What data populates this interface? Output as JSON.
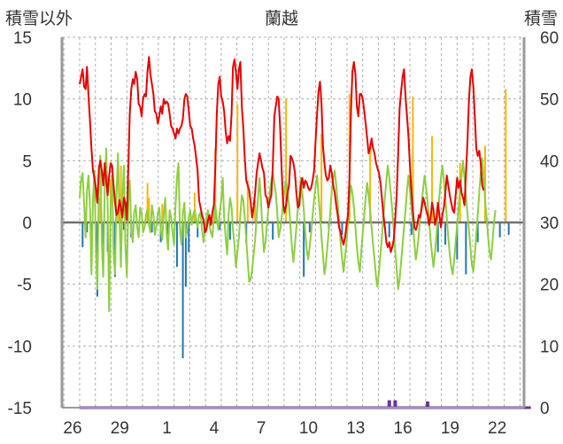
{
  "chart_data": {
    "type": "line",
    "title": "蘭越",
    "left_axis_label": "積雪以外",
    "right_axis_label": "積雪",
    "left_ylim": [
      -15,
      15
    ],
    "left_ticks": [
      15,
      10,
      5,
      0,
      -5,
      -10,
      -15
    ],
    "right_ylim": [
      0,
      60
    ],
    "right_ticks": [
      60,
      50,
      40,
      30,
      20,
      10,
      0
    ],
    "x_tick_labels": [
      "26",
      "29",
      "1",
      "4",
      "7",
      "10",
      "13",
      "16",
      "19",
      "22"
    ],
    "grid": true,
    "colors": {
      "temperature": "#e60000",
      "sunshine": "#f5b800",
      "precipitation": "#1f77b4",
      "wind": "#8ccf3f",
      "snow_depth": "#7030a0",
      "zero_line": "#707070",
      "grid": "#b0b0b0",
      "axis": "#9a9a9a"
    },
    "series": [
      {
        "key": "temperature",
        "y": [
          11.2,
          11.8,
          12.4,
          11.0,
          10.8,
          12.6,
          10.2,
          8.2,
          6.0,
          4.2,
          3.6,
          2.8,
          1.6,
          4.4,
          5.0,
          4.2,
          3.0,
          4.8,
          3.4,
          2.2,
          3.8,
          4.8,
          4.6,
          3.0,
          1.6,
          0.6,
          0.8,
          1.8,
          1.2,
          0.4,
          2.0,
          1.6,
          0.2,
          4.6,
          8.8,
          10.8,
          11.6,
          11.2,
          12.2,
          11.6,
          9.6,
          9.4,
          8.6,
          10.0,
          10.4,
          10.2,
          12.2,
          13.4,
          12.0,
          11.2,
          10.4,
          9.0,
          8.8,
          8.0,
          8.6,
          9.4,
          8.8,
          10.0,
          9.6,
          9.8,
          9.6,
          8.8,
          7.8,
          7.6,
          7.2,
          6.8,
          7.6,
          7.2,
          7.6,
          7.8,
          8.4,
          10.0,
          10.4,
          10.2,
          9.0,
          7.8,
          7.6,
          6.8,
          6.2,
          5.2,
          4.2,
          1.8,
          1.2,
          0.6,
          0.2,
          -0.8,
          -0.6,
          0.2,
          0.6,
          -0.2,
          0.8,
          1.4,
          4.4,
          8.8,
          11.2,
          11.8,
          10.2,
          9.8,
          9.0,
          7.4,
          6.4,
          7.0,
          6.6,
          8.8,
          12.6,
          13.2,
          12.2,
          10.8,
          12.4,
          13.0,
          9.4,
          7.6,
          5.2,
          3.4,
          3.0,
          2.6,
          1.6,
          0.4,
          1.2,
          2.4,
          4.0,
          4.8,
          5.6,
          5.0,
          4.4,
          4.0,
          2.2,
          2.0,
          1.2,
          1.8,
          2.2,
          4.6,
          8.6,
          9.4,
          10.2,
          10.0,
          7.6,
          4.2,
          1.6,
          0.8,
          1.4,
          2.4,
          3.0,
          5.4,
          5.2,
          4.8,
          4.0,
          2.4,
          1.2,
          1.4,
          3.0,
          3.6,
          2.8,
          3.4,
          3.2,
          2.8,
          2.6,
          2.8,
          3.4,
          4.2,
          6.6,
          8.8,
          10.6,
          11.4,
          9.6,
          6.2,
          4.8,
          3.8,
          3.4,
          3.6,
          4.6,
          4.0,
          3.0,
          2.4,
          1.4,
          0.6,
          -0.4,
          -0.8,
          -1.4,
          -1.8,
          -1.2,
          -0.2,
          0.6,
          3.6,
          9.0,
          12.2,
          13.0,
          12.0,
          9.4,
          8.6,
          10.4,
          10.4,
          10.0,
          9.0,
          8.0,
          6.8,
          5.6,
          6.0,
          6.8,
          6.0,
          5.6,
          4.8,
          4.4,
          4.0,
          3.2,
          2.0,
          0.6,
          -0.4,
          -1.6,
          -2.0,
          -1.6,
          -2.4,
          -2.0,
          -1.4,
          0.2,
          2.2,
          5.6,
          9.2,
          10.6,
          11.8,
          12.4,
          10.2,
          8.6,
          7.0,
          4.6,
          2.6,
          1.0,
          -0.4,
          -0.6,
          -0.2,
          0.6,
          0.4,
          1.2,
          2.0,
          1.6,
          1.0,
          0.6,
          -0.2,
          0.4,
          1.6,
          1.0,
          -0.2,
          0.4,
          1.6,
          0.6,
          -0.4,
          0.6,
          1.2,
          2.4,
          3.8,
          3.0,
          2.2,
          1.6,
          1.0,
          0.8,
          2.2,
          3.6,
          2.8,
          3.4,
          2.4,
          2.0,
          1.4,
          4.0,
          6.4,
          9.8,
          11.8,
          12.4,
          11.0,
          8.6,
          6.0,
          5.4,
          5.8,
          4.8,
          3.0,
          2.6
        ]
      },
      {
        "key": "wind",
        "y": [
          2,
          3.5,
          4,
          1.5,
          -1.2,
          2.6,
          3.8,
          1.2,
          -4.2,
          1.8,
          4.2,
          -2.2,
          -5.4,
          3.2,
          5.4,
          -1.6,
          -4.4,
          2.8,
          6.0,
          1.4,
          -7.2,
          1.2,
          3.8,
          -2.6,
          -4.2,
          2.2,
          5.6,
          0.4,
          -3.6,
          2.0,
          4.6,
          -1.8,
          -4.4,
          1.6,
          3.4,
          -0.6,
          -1.6,
          0.8,
          1.4,
          -0.4,
          -1.2,
          1.2,
          0.8,
          -0.8,
          -0.4,
          0.6,
          1.0,
          -0.2,
          -0.8,
          1.4,
          0.6,
          -1.0,
          -0.4,
          0.8,
          1.2,
          -0.6,
          -1.4,
          0.6,
          2.0,
          -1.0,
          -2.2,
          1.0,
          0.4,
          -0.8,
          -1.8,
          1.4,
          3.6,
          4.8,
          -0.6,
          -1.8,
          0.8,
          1.6,
          -1.2,
          -0.6,
          0.4,
          1.0,
          -0.2,
          0.6,
          1.0,
          0.2,
          -0.4,
          0.6,
          0.8,
          -0.6,
          -1.6,
          -0.4,
          0.4,
          1.0,
          -0.2,
          -0.8,
          -1.2,
          0.4,
          1.4,
          0.2,
          -0.6,
          0.8,
          1.8,
          3.6,
          0.4,
          -1.2,
          -2.6,
          0.6,
          2.0,
          1.2,
          -0.6,
          -1.8,
          -3.6,
          -2.4,
          -1.2,
          0.6,
          2.2,
          1.8,
          0.4,
          -1.4,
          -3.2,
          -4.8,
          -4.6,
          -3.8,
          -2.6,
          -1.4,
          0.4,
          2.0,
          3.6,
          1.6,
          -0.6,
          -2.4,
          -1.6,
          -0.2,
          1.2,
          2.6,
          3.4,
          4.0,
          3.2,
          2.4,
          0.8,
          -1.2,
          -0.6,
          0.4,
          1.6,
          2.8,
          3.4,
          2.6,
          1.4,
          -0.4,
          -2.0,
          -3.2,
          -1.8,
          -0.4,
          1.2,
          2.2,
          3.6,
          2.4,
          1.0,
          -0.8,
          -2.2,
          -3.0,
          -2.0,
          -0.8,
          0.6,
          1.8,
          3.0,
          3.8,
          2.2,
          0.6,
          -1.2,
          -2.6,
          -4.2,
          -3.4,
          -2.0,
          -0.6,
          0.8,
          2.6,
          3.6,
          4.2,
          3.0,
          1.6,
          0.0,
          -1.6,
          -3.0,
          -4.0,
          -2.8,
          -1.6,
          0.0,
          1.6,
          3.0,
          2.4,
          1.2,
          -0.4,
          -2.0,
          -3.2,
          -4.0,
          -2.4,
          -0.8,
          0.6,
          2.0,
          3.2,
          2.2,
          1.0,
          -0.4,
          -1.8,
          -3.0,
          -4.4,
          -5.2,
          -4.0,
          -2.6,
          -1.2,
          0.4,
          2.0,
          3.4,
          4.6,
          3.6,
          2.4,
          1.0,
          -0.6,
          -2.2,
          -3.8,
          -5.4,
          -4.6,
          -3.2,
          -1.8,
          -0.4,
          1.0,
          2.6,
          3.8,
          2.6,
          1.2,
          -0.2,
          -1.6,
          -3.0,
          -2.2,
          -1.0,
          0.4,
          1.6,
          2.8,
          3.8,
          2.8,
          1.6,
          0.2,
          -1.4,
          -2.6,
          -3.6,
          -2.4,
          -1.0,
          0.6,
          2.2,
          3.6,
          4.6,
          3.4,
          2.0,
          0.4,
          -1.2,
          -2.6,
          -3.6,
          -4.2,
          -3.0,
          -1.6,
          -0.2,
          1.2,
          2.6,
          3.8,
          5.0,
          3.6,
          2.2,
          0.8,
          -0.6,
          -2.0,
          -3.4,
          -4.0,
          -2.6,
          -1.0,
          0.6,
          2.4,
          4.0,
          5.2,
          3.6,
          1.8,
          0.4,
          -1.2,
          -2.4,
          -3.0,
          -1.6,
          0.0,
          1.0
        ]
      },
      {
        "key": "snow_depth",
        "y": [
          0,
          0,
          0,
          0,
          0,
          0,
          0,
          0,
          0,
          0,
          0,
          0,
          0,
          0,
          0,
          0,
          0,
          0,
          0,
          0,
          0,
          0,
          0,
          0,
          0,
          0,
          0,
          0,
          0,
          0,
          0,
          0,
          0,
          0,
          0,
          0,
          0,
          0,
          0,
          0,
          0,
          0,
          0,
          0,
          0,
          0,
          0,
          0,
          0,
          0,
          0,
          0,
          0,
          0,
          0,
          0,
          0,
          0,
          0,
          0,
          0,
          0,
          0,
          0,
          0,
          0,
          0,
          0,
          0,
          0,
          0,
          0,
          0,
          0,
          0,
          0,
          0,
          0,
          0,
          0,
          0,
          0,
          0,
          0,
          0,
          0,
          0,
          0,
          0,
          0,
          0,
          0,
          0,
          0,
          0,
          0,
          0,
          0,
          0,
          0,
          0,
          0,
          0,
          0,
          0,
          0,
          0,
          0,
          0,
          0,
          0,
          0,
          0,
          0,
          0,
          0,
          0,
          0,
          0,
          0,
          0,
          0,
          0,
          0,
          0,
          0,
          0,
          0,
          0,
          0,
          0,
          0,
          0,
          0,
          0,
          0,
          0,
          0,
          0,
          0,
          0,
          0,
          0,
          0,
          0,
          0,
          0,
          0,
          0,
          0,
          0,
          0,
          0,
          0,
          0,
          0,
          0,
          0,
          0,
          0,
          0,
          0,
          0,
          0,
          0,
          0,
          0,
          0,
          0,
          0,
          0,
          0,
          0,
          0,
          0,
          0,
          0,
          0,
          0,
          0,
          0,
          0,
          0,
          0,
          0,
          0,
          0,
          0,
          0,
          0,
          0,
          0,
          0,
          0,
          0,
          0,
          0,
          0,
          0,
          0,
          0,
          0,
          0,
          0,
          0,
          0,
          0,
          0,
          0,
          0,
          0,
          0,
          0,
          0,
          0,
          0,
          0,
          0,
          0,
          0,
          0,
          0,
          0,
          0,
          0,
          0,
          0,
          0,
          0,
          0,
          0,
          0,
          0,
          0,
          0,
          0,
          0,
          0,
          0,
          0,
          0,
          0,
          0,
          0,
          0,
          0,
          0,
          0,
          0,
          0,
          0,
          0,
          0,
          0,
          0,
          0,
          0,
          0,
          0,
          0,
          0,
          0,
          0,
          0,
          0,
          0,
          0,
          0,
          0,
          0,
          0,
          0,
          0,
          0,
          0,
          0,
          0,
          0,
          0,
          0,
          0,
          0,
          0,
          0,
          0,
          0,
          0,
          0,
          0,
          0,
          0,
          0,
          0,
          0,
          0,
          0,
          0,
          0,
          0,
          0,
          0,
          0,
          0,
          0,
          0,
          0,
          0
        ]
      }
    ],
    "bars": [
      {
        "key": "sunshine",
        "x": [
          14,
          21,
          26,
          28,
          46,
          47,
          56,
          78,
          92,
          107,
          114,
          119,
          140,
          164,
          183,
          197,
          226,
          239,
          258,
          275,
          289
        ],
        "y": [
          2.0,
          3.5,
          1.2,
          4.6,
          3.2,
          2.0,
          1.5,
          2.4,
          6.0,
          9.6,
          3.4,
          1.8,
          10.0,
          7.2,
          10.4,
          6.4,
          10.2,
          7.0,
          4.8,
          6.2,
          10.8
        ]
      },
      {
        "key": "precipitation",
        "x": [
          2,
          5,
          8,
          12,
          16,
          19,
          24,
          30,
          35,
          49,
          55,
          60,
          66,
          70,
          72,
          74,
          80,
          85,
          95,
          102,
          113,
          131,
          152,
          156,
          169,
          178,
          210,
          225,
          243,
          248,
          256,
          262,
          270,
          285,
          291
        ],
        "y": [
          -2.0,
          -0.8,
          -1.2,
          -6.0,
          -3.2,
          -2.4,
          -4.4,
          -0.6,
          -1.2,
          -0.8,
          -1.6,
          -1.0,
          -3.6,
          -11.0,
          -5.2,
          -2.4,
          -1.2,
          -0.8,
          -0.6,
          -1.4,
          -1.6,
          -1.4,
          -4.4,
          -0.8,
          -0.6,
          -1.0,
          -1.2,
          -1.0,
          -2.4,
          -1.8,
          -3.0,
          -4.2,
          -1.6,
          -1.2,
          -1.0
        ]
      }
    ],
    "snow_marks": [
      {
        "x": 210,
        "y": 1.2
      },
      {
        "x": 214,
        "y": 1.2
      },
      {
        "x": 236,
        "y": 1.0
      }
    ]
  }
}
